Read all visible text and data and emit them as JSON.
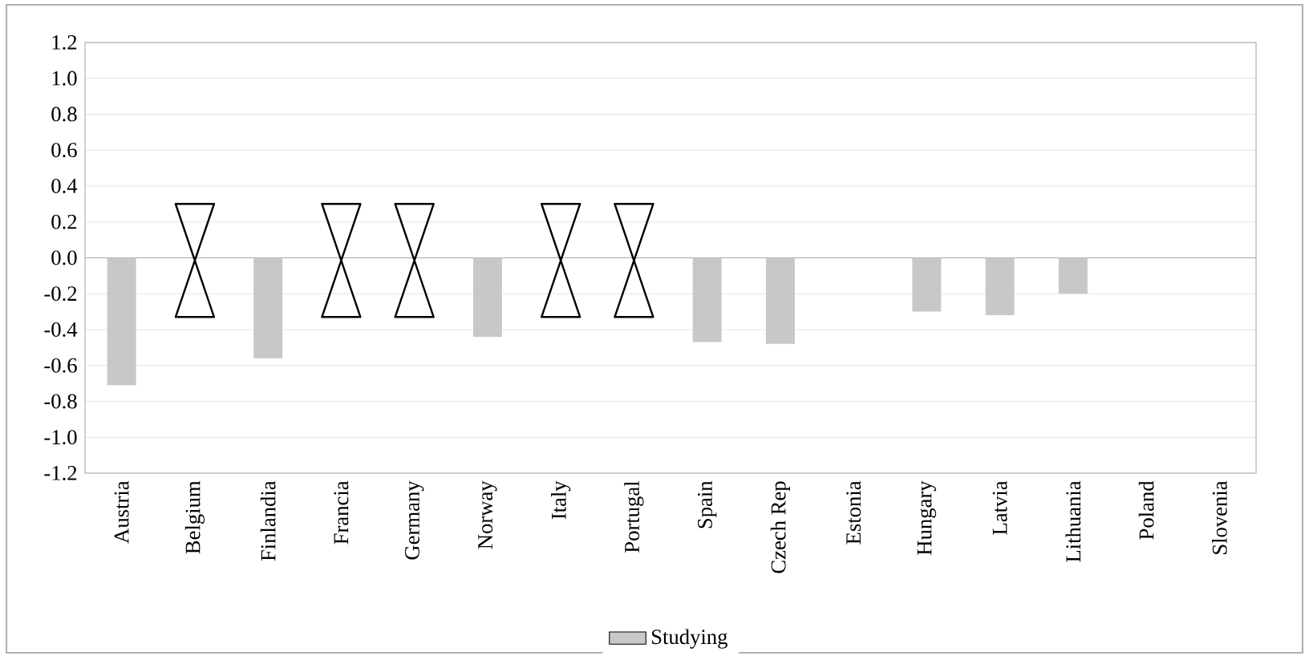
{
  "chart_data": {
    "type": "bar",
    "categories": [
      "Austria",
      "Belgium",
      "Finlandia",
      "Francia",
      "Germany",
      "Norway",
      "Italy",
      "Portugal",
      "Spain",
      "Czech Rep",
      "Estonia",
      "Hungary",
      "Latvia",
      "Lithuania",
      "Poland",
      "Slovenia"
    ],
    "series": [
      {
        "name": "Studying",
        "color": "#c8c8c8",
        "values": [
          -0.71,
          null,
          -0.56,
          null,
          null,
          -0.44,
          null,
          null,
          -0.47,
          -0.48,
          0,
          -0.3,
          -0.32,
          -0.2,
          0,
          0
        ]
      }
    ],
    "ylim": [
      -1.2,
      1.2
    ],
    "yticks": [
      {
        "value": -1.2,
        "label": "-1.2"
      },
      {
        "value": -1.0,
        "label": "-1.0"
      },
      {
        "value": -0.8,
        "label": "-0.8"
      },
      {
        "value": -0.6,
        "label": "-0.6"
      },
      {
        "value": -0.4,
        "label": "-0.4"
      },
      {
        "value": -0.2,
        "label": "-0.2"
      },
      {
        "value": 0,
        "label": "0.0"
      },
      {
        "value": 0.2,
        "label": "0.2"
      },
      {
        "value": 0.4,
        "label": "0.4"
      },
      {
        "value": 0.6,
        "label": "0.6"
      },
      {
        "value": 0.8,
        "label": "0.8"
      },
      {
        "value": 1.0,
        "label": "1.0"
      },
      {
        "value": 1.2,
        "label": "1.2"
      }
    ],
    "grid": "y",
    "legend": "bottom"
  }
}
